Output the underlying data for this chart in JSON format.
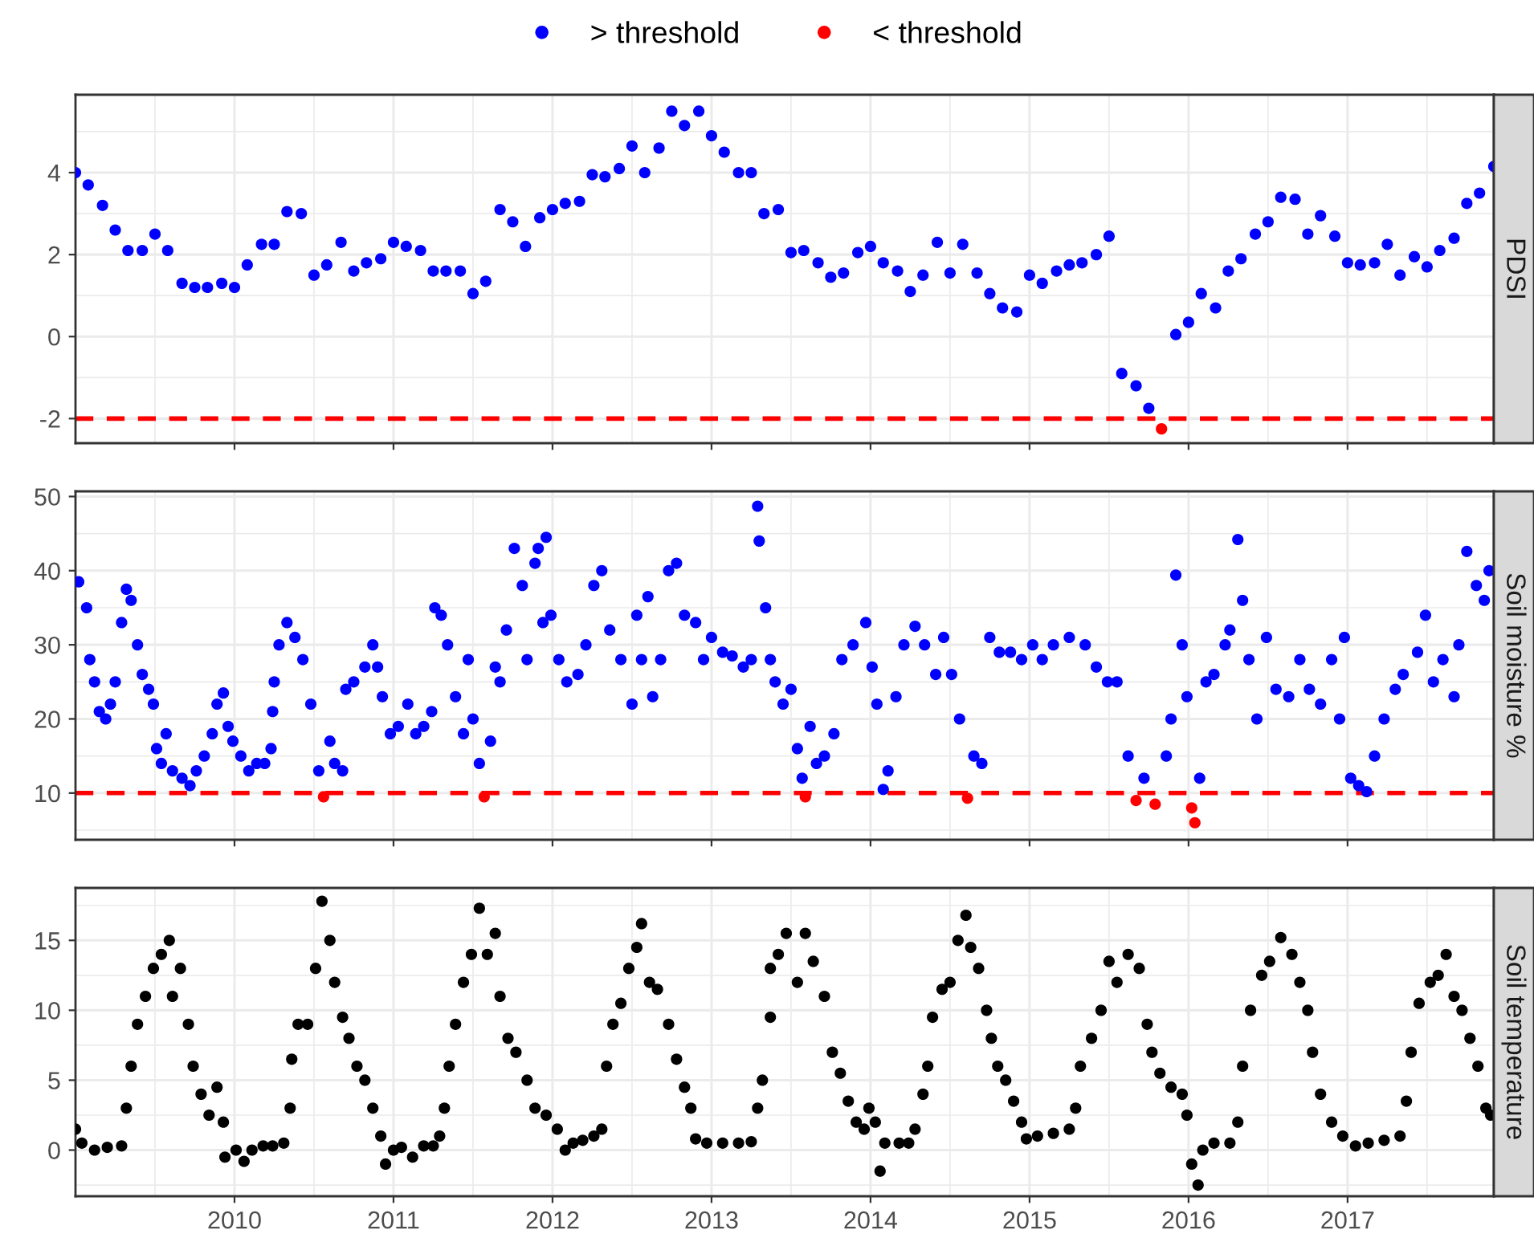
{
  "chart_data": [
    {
      "type": "scatter",
      "ylabel": "PDSI",
      "legend": "top",
      "grid": true,
      "tick_labels": "y",
      "marker": "circle",
      "xlim": [
        2009.0,
        2017.92
      ],
      "xticks": [
        2010,
        2011,
        2012,
        2013,
        2014,
        2015,
        2016,
        2017
      ],
      "ylim": [
        -2.6,
        5.9
      ],
      "yticks": [
        -2,
        0,
        2,
        4
      ],
      "ref_lines": [
        {
          "axis": "y",
          "value": -2,
          "color": "#ff0000",
          "line_style": "dashed"
        }
      ],
      "series": [
        {
          "name": "> threshold",
          "color": "#0000ff",
          "x": [
            2009.0,
            2009.08,
            2009.17,
            2009.25,
            2009.33,
            2009.42,
            2009.5,
            2009.58,
            2009.67,
            2009.75,
            2009.83,
            2009.92,
            2010.0,
            2010.08,
            2010.17,
            2010.25,
            2010.33,
            2010.42,
            2010.5,
            2010.58,
            2010.67,
            2010.75,
            2010.83,
            2010.92,
            2011.0,
            2011.08,
            2011.17,
            2011.25,
            2011.33,
            2011.42,
            2011.5,
            2011.58,
            2011.67,
            2011.75,
            2011.83,
            2011.92,
            2012.0,
            2012.08,
            2012.17,
            2012.25,
            2012.33,
            2012.42,
            2012.5,
            2012.58,
            2012.67,
            2012.75,
            2012.83,
            2012.92,
            2013.0,
            2013.08,
            2013.17,
            2013.25,
            2013.33,
            2013.42,
            2013.5,
            2013.58,
            2013.67,
            2013.75,
            2013.83,
            2013.92,
            2014.0,
            2014.08,
            2014.17,
            2014.25,
            2014.33,
            2014.42,
            2014.5,
            2014.58,
            2014.67,
            2014.75,
            2014.83,
            2014.92,
            2015.0,
            2015.08,
            2015.17,
            2015.25,
            2015.33,
            2015.42,
            2015.5,
            2015.58,
            2015.67,
            2015.75,
            2015.92,
            2016.0,
            2016.08,
            2016.17,
            2016.25,
            2016.33,
            2016.42,
            2016.5,
            2016.58,
            2016.67,
            2016.75,
            2016.83,
            2016.92,
            2017.0,
            2017.08,
            2017.17,
            2017.25,
            2017.33,
            2017.42,
            2017.5,
            2017.58,
            2017.67,
            2017.75,
            2017.83,
            2017.92
          ],
          "values": [
            4.0,
            3.7,
            3.2,
            2.6,
            2.1,
            2.1,
            2.5,
            2.1,
            1.3,
            1.2,
            1.2,
            1.3,
            1.2,
            1.75,
            2.25,
            2.25,
            3.05,
            3.0,
            1.5,
            1.75,
            2.3,
            1.6,
            1.8,
            1.9,
            2.3,
            2.2,
            2.1,
            1.6,
            1.6,
            1.6,
            1.05,
            1.35,
            3.1,
            2.8,
            2.2,
            2.9,
            3.1,
            3.25,
            3.3,
            3.95,
            3.9,
            4.1,
            4.65,
            4.0,
            4.6,
            5.5,
            5.15,
            5.5,
            4.9,
            4.5,
            4.0,
            4.0,
            3.0,
            3.1,
            2.05,
            2.1,
            1.8,
            1.45,
            1.55,
            2.05,
            2.2,
            1.8,
            1.6,
            1.1,
            1.5,
            2.3,
            1.55,
            2.25,
            1.55,
            1.05,
            0.7,
            0.6,
            1.5,
            1.3,
            1.6,
            1.75,
            1.8,
            2.0,
            2.45,
            -0.9,
            -1.2,
            -1.75,
            0.05,
            0.35,
            1.05,
            0.7,
            1.6,
            1.9,
            2.5,
            2.8,
            3.4,
            3.35,
            2.5,
            2.95,
            2.45,
            1.8,
            1.75,
            1.8,
            2.25,
            1.5,
            1.95,
            1.7,
            2.1,
            2.4,
            3.25,
            3.5,
            4.15
          ]
        },
        {
          "name": "< threshold",
          "color": "#ff0000",
          "x": [
            2015.83
          ],
          "values": [
            -2.25
          ]
        }
      ]
    },
    {
      "type": "scatter",
      "ylabel": "Soil moisture %",
      "grid": true,
      "tick_labels": "y",
      "marker": "circle",
      "xlim": [
        2009.0,
        2017.92
      ],
      "xticks": [
        2010,
        2011,
        2012,
        2013,
        2014,
        2015,
        2016,
        2017
      ],
      "ylim": [
        3.7,
        50.7
      ],
      "yticks": [
        10,
        20,
        30,
        40,
        50
      ],
      "ref_lines": [
        {
          "axis": "y",
          "value": 10,
          "color": "#ff0000",
          "line_style": "dashed"
        }
      ],
      "series": [
        {
          "name": "> threshold",
          "color": "#0000ff",
          "x": [
            2009.02,
            2009.07,
            2009.09,
            2009.12,
            2009.15,
            2009.19,
            2009.22,
            2009.25,
            2009.29,
            2009.32,
            2009.35,
            2009.39,
            2009.42,
            2009.46,
            2009.49,
            2009.51,
            2009.54,
            2009.57,
            2009.61,
            2009.67,
            2009.72,
            2009.76,
            2009.81,
            2009.86,
            2009.89,
            2009.93,
            2009.96,
            2009.99,
            2010.04,
            2010.09,
            2010.14,
            2010.19,
            2010.23,
            2010.24,
            2010.25,
            2010.28,
            2010.33,
            2010.38,
            2010.43,
            2010.48,
            2010.53,
            2010.6,
            2010.63,
            2010.68,
            2010.7,
            2010.75,
            2010.82,
            2010.87,
            2010.9,
            2010.93,
            2010.98,
            2011.03,
            2011.09,
            2011.14,
            2011.19,
            2011.24,
            2011.26,
            2011.3,
            2011.34,
            2011.39,
            2011.44,
            2011.47,
            2011.5,
            2011.54,
            2011.61,
            2011.64,
            2011.67,
            2011.71,
            2011.76,
            2011.81,
            2011.84,
            2011.89,
            2011.91,
            2011.94,
            2011.96,
            2011.99,
            2012.04,
            2012.09,
            2012.16,
            2012.21,
            2012.26,
            2012.31,
            2012.36,
            2012.43,
            2012.5,
            2012.53,
            2012.56,
            2012.6,
            2012.63,
            2012.68,
            2012.73,
            2012.78,
            2012.83,
            2012.9,
            2012.95,
            2013.0,
            2013.07,
            2013.13,
            2013.2,
            2013.25,
            2013.29,
            2013.3,
            2013.34,
            2013.37,
            2013.4,
            2013.45,
            2013.5,
            2013.54,
            2013.57,
            2013.62,
            2013.66,
            2013.71,
            2013.77,
            2013.82,
            2013.89,
            2013.97,
            2014.01,
            2014.04,
            2014.08,
            2014.11,
            2014.16,
            2014.21,
            2014.28,
            2014.34,
            2014.41,
            2014.46,
            2014.51,
            2014.56,
            2014.65,
            2014.7,
            2014.75,
            2014.81,
            2014.88,
            2014.95,
            2015.02,
            2015.08,
            2015.15,
            2015.25,
            2015.35,
            2015.42,
            2015.49,
            2015.55,
            2015.62,
            2015.72,
            2015.86,
            2015.89,
            2015.92,
            2015.96,
            2015.99,
            2016.07,
            2016.11,
            2016.16,
            2016.23,
            2016.26,
            2016.31,
            2016.34,
            2016.38,
            2016.43,
            2016.49,
            2016.55,
            2016.63,
            2016.7,
            2016.76,
            2016.83,
            2016.9,
            2016.95,
            2016.98,
            2017.02,
            2017.07,
            2017.12,
            2017.17,
            2017.23,
            2017.3,
            2017.35,
            2017.44,
            2017.49,
            2017.54,
            2017.6,
            2017.67,
            2017.7,
            2017.75,
            2017.81,
            2017.86,
            2017.89
          ],
          "values": [
            38.5,
            35,
            28,
            25,
            21,
            20,
            22,
            25,
            33,
            37.5,
            36,
            30,
            26,
            24,
            22,
            16,
            14,
            18,
            13,
            12,
            11,
            13,
            15,
            18,
            22,
            23.5,
            19,
            17,
            15,
            13,
            14,
            14,
            16,
            21,
            25,
            30,
            33,
            31,
            28,
            22,
            13,
            17,
            14,
            13,
            24,
            25,
            27,
            30,
            27,
            23,
            18,
            19,
            22,
            18,
            19,
            21,
            35,
            34,
            30,
            23,
            18,
            28,
            20,
            14,
            17,
            27,
            25,
            32,
            43,
            38,
            28,
            41,
            43,
            33,
            44.5,
            34,
            28,
            25,
            26,
            30,
            38,
            40,
            32,
            28,
            22,
            34,
            28,
            36.5,
            23,
            28,
            40,
            41,
            34,
            33,
            28,
            31,
            29,
            28.5,
            27,
            28,
            48.7,
            44,
            35,
            28,
            25,
            22,
            24,
            16,
            12,
            19,
            14,
            15,
            18,
            28,
            30,
            33,
            27,
            22,
            10.5,
            13,
            23,
            30,
            32.5,
            30,
            26,
            31,
            26,
            20,
            15,
            14,
            31,
            29,
            29,
            28,
            30,
            28,
            30,
            31,
            30,
            27,
            25,
            25,
            15,
            12,
            15,
            20,
            39.4,
            30,
            23,
            12,
            25,
            26,
            30,
            32,
            44.2,
            36,
            28,
            20,
            31,
            24,
            23,
            28,
            24,
            22,
            28,
            20,
            31,
            12,
            11,
            10.2,
            15,
            20,
            24,
            26,
            29,
            34,
            25,
            28,
            23,
            30,
            42.6,
            38,
            36,
            40
          ]
        },
        {
          "name": "< threshold",
          "color": "#ff0000",
          "x": [
            2010.56,
            2011.57,
            2013.59,
            2014.61,
            2015.67,
            2015.79,
            2016.02,
            2016.04
          ],
          "values": [
            9.5,
            9.5,
            9.5,
            9.3,
            9,
            8.5,
            8,
            6
          ]
        }
      ]
    },
    {
      "type": "scatter",
      "ylabel": "Soil temperature",
      "grid": true,
      "marker": "circle",
      "xlim": [
        2009.0,
        2017.92
      ],
      "xticks": [
        2010,
        2011,
        2012,
        2013,
        2014,
        2015,
        2016,
        2017
      ],
      "ylim": [
        -3.3,
        18.75
      ],
      "yticks": [
        0,
        5,
        10,
        15
      ],
      "series": [
        {
          "color": "#000000",
          "x": [
            2009.0,
            2009.04,
            2009.12,
            2009.2,
            2009.29,
            2009.32,
            2009.35,
            2009.39,
            2009.44,
            2009.49,
            2009.54,
            2009.59,
            2009.61,
            2009.66,
            2009.71,
            2009.74,
            2009.79,
            2009.84,
            2009.89,
            2009.93,
            2009.94,
            2010.01,
            2010.06,
            2010.11,
            2010.18,
            2010.24,
            2010.31,
            2010.35,
            2010.36,
            2010.4,
            2010.46,
            2010.51,
            2010.55,
            2010.6,
            2010.63,
            2010.68,
            2010.72,
            2010.77,
            2010.82,
            2010.87,
            2010.92,
            2010.95,
            2011.0,
            2011.05,
            2011.12,
            2011.19,
            2011.25,
            2011.29,
            2011.32,
            2011.35,
            2011.39,
            2011.44,
            2011.49,
            2011.54,
            2011.59,
            2011.64,
            2011.67,
            2011.72,
            2011.77,
            2011.84,
            2011.89,
            2011.96,
            2012.03,
            2012.08,
            2012.13,
            2012.19,
            2012.26,
            2012.31,
            2012.34,
            2012.38,
            2012.43,
            2012.48,
            2012.53,
            2012.56,
            2012.61,
            2012.66,
            2012.73,
            2012.78,
            2012.83,
            2012.87,
            2012.9,
            2012.97,
            2013.07,
            2013.17,
            2013.25,
            2013.29,
            2013.32,
            2013.37,
            2013.37,
            2013.42,
            2013.47,
            2013.54,
            2013.59,
            2013.64,
            2013.71,
            2013.76,
            2013.81,
            2013.86,
            2013.91,
            2013.96,
            2013.99,
            2014.03,
            2014.06,
            2014.09,
            2014.18,
            2014.24,
            2014.28,
            2014.33,
            2014.36,
            2014.39,
            2014.45,
            2014.5,
            2014.55,
            2014.6,
            2014.63,
            2014.68,
            2014.73,
            2014.76,
            2014.8,
            2014.85,
            2014.9,
            2014.95,
            2014.98,
            2015.05,
            2015.15,
            2015.25,
            2015.29,
            2015.32,
            2015.39,
            2015.45,
            2015.5,
            2015.55,
            2015.62,
            2015.69,
            2015.74,
            2015.77,
            2015.82,
            2015.89,
            2015.96,
            2015.99,
            2016.02,
            2016.06,
            2016.09,
            2016.16,
            2016.26,
            2016.31,
            2016.34,
            2016.39,
            2016.46,
            2016.51,
            2016.58,
            2016.65,
            2016.7,
            2016.75,
            2016.78,
            2016.83,
            2016.9,
            2016.97,
            2017.05,
            2017.13,
            2017.23,
            2017.33,
            2017.37,
            2017.4,
            2017.45,
            2017.52,
            2017.57,
            2017.62,
            2017.67,
            2017.72,
            2017.77,
            2017.82,
            2017.87,
            2017.9
          ],
          "values": [
            1.5,
            0.5,
            0,
            0.2,
            0.3,
            3,
            6,
            9,
            11,
            13,
            14,
            15,
            11,
            13,
            9,
            6,
            4,
            2.5,
            4.5,
            2,
            -0.5,
            0,
            -0.8,
            0,
            0.3,
            0.3,
            0.5,
            3,
            6.5,
            9,
            9,
            13,
            17.8,
            15,
            12,
            9.5,
            8,
            6,
            5,
            3,
            1,
            -1,
            0,
            0.2,
            -0.5,
            0.3,
            0.3,
            1,
            3,
            6,
            9,
            12,
            14,
            17.3,
            14,
            15.5,
            11,
            8,
            7,
            5,
            3,
            2.5,
            1.5,
            0,
            0.5,
            0.7,
            1,
            1.5,
            6,
            9,
            10.5,
            13,
            14.5,
            16.2,
            12,
            11.5,
            9,
            6.5,
            4.5,
            3,
            0.8,
            0.5,
            0.5,
            0.5,
            0.6,
            3,
            5,
            9.5,
            13,
            14,
            15.5,
            12,
            15.5,
            13.5,
            11,
            7,
            5.5,
            3.5,
            2,
            1.5,
            3,
            2,
            -1.5,
            0.5,
            0.5,
            0.5,
            1.5,
            4,
            6,
            9.5,
            11.5,
            12,
            15,
            16.8,
            14.5,
            13,
            10,
            8,
            6,
            5,
            3.5,
            2,
            0.8,
            1,
            1.2,
            1.5,
            3,
            6,
            8,
            10,
            13.5,
            12,
            14,
            13,
            9,
            7,
            5.5,
            4.5,
            4,
            2.5,
            -1,
            -2.5,
            0,
            0.5,
            0.5,
            2,
            6,
            10,
            12.5,
            13.5,
            15.2,
            14,
            12,
            10,
            7,
            4,
            2,
            1,
            0.3,
            0.5,
            0.7,
            1,
            3.5,
            7,
            10.5,
            12,
            12.5,
            14,
            11,
            10,
            8,
            6,
            3,
            2.5
          ]
        }
      ]
    }
  ]
}
